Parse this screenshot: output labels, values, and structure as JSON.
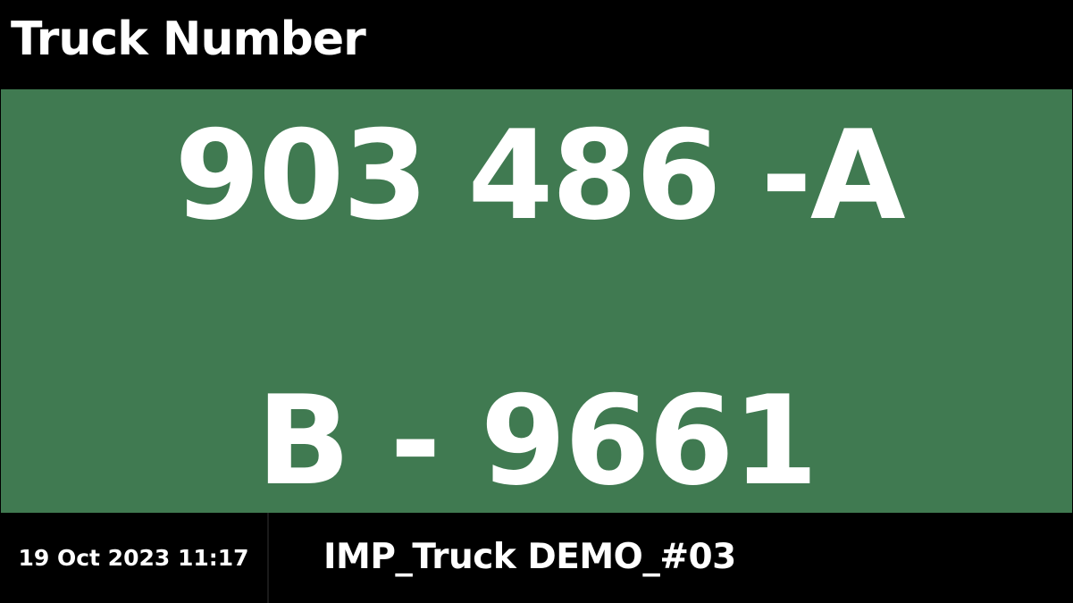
{
  "header": {
    "title": "Truck Number"
  },
  "plate": {
    "line1": "903 486 -A",
    "line2": "B - 9661"
  },
  "footer": {
    "datetime": "19 Oct 2023 11:17",
    "device_name": "IMP_Truck DEMO_#03"
  },
  "colors": {
    "background": "#000000",
    "display_green": "#407a51",
    "text": "#ffffff"
  }
}
